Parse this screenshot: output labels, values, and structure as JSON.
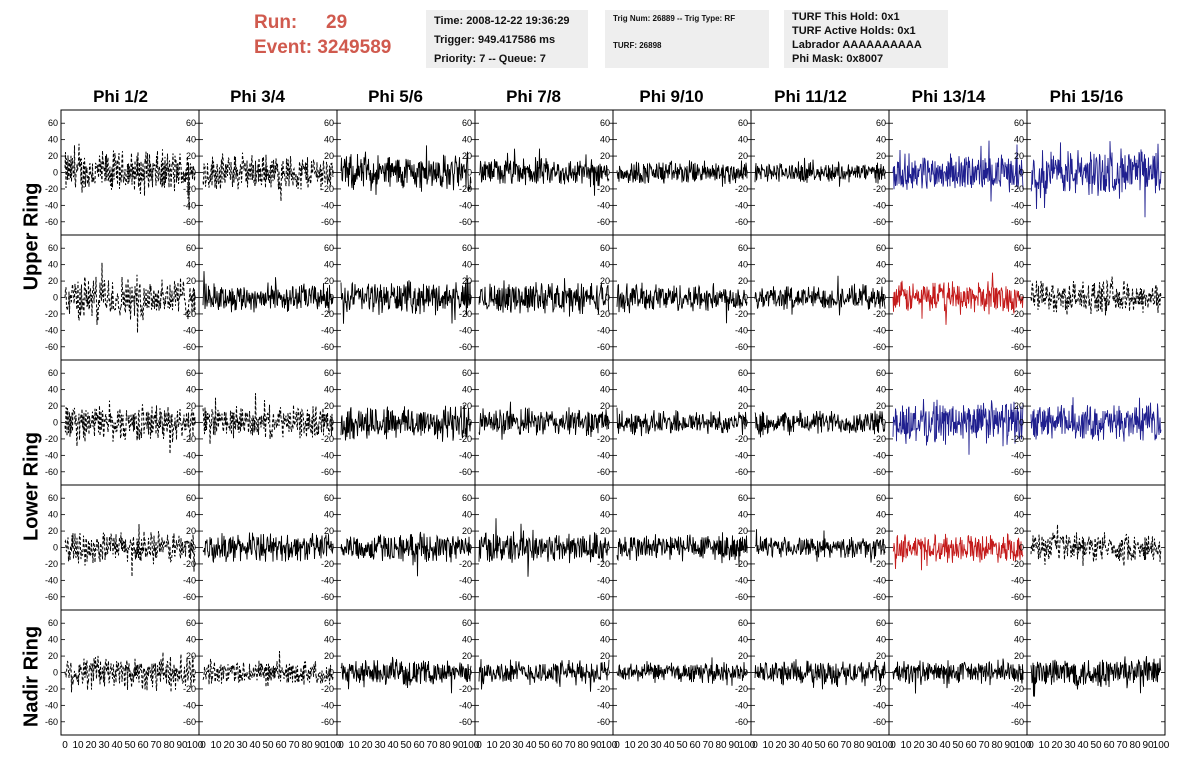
{
  "header": {
    "run_label": "Run:",
    "run_value": "29",
    "event_label": "Event:",
    "event_value": "3249589",
    "time": "Time: 2008-12-22 19:36:29",
    "trigger": "Trigger: 949.417586 ms",
    "priority": "Priority: 7 -- Queue: 7",
    "trig_num": "Trig Num: 26889 -- Trig Type: RF",
    "turf": "TURF: 26898",
    "turf_hold": "TURF This Hold: 0x1",
    "turf_active": "TURF Active Holds: 0x1",
    "labrador": "Labrador AAAAAAAAAA",
    "phi_mask": "Phi Mask: 0x8007"
  },
  "columns": [
    "Phi 1/2",
    "Phi 3/4",
    "Phi 5/6",
    "Phi 7/8",
    "Phi 9/10",
    "Phi 11/12",
    "Phi 13/14",
    "Phi 15/16"
  ],
  "row_groups": [
    "Upper Ring",
    "Lower Ring",
    "Nadir Ring"
  ],
  "axes": {
    "y_ticks": [
      60,
      40,
      20,
      0,
      -20,
      -40,
      -60
    ],
    "y_range": [
      -70,
      70
    ],
    "x_range": [
      0,
      100
    ],
    "x_ticks": [
      0,
      10,
      20,
      30,
      40,
      50,
      60,
      70,
      80,
      90,
      100
    ]
  },
  "colors": {
    "blue": "#1f1f8f",
    "red": "#c41c1c",
    "black": "#000000",
    "header_text": "#d05a4e",
    "info_bg": "#eeeeee"
  },
  "panels": [
    [
      "dashed",
      "dashed",
      "black",
      "black",
      "black",
      "black",
      "blue",
      "blue"
    ],
    [
      "dashed",
      "black",
      "black",
      "black",
      "black",
      "black",
      "red",
      "dashed"
    ],
    [
      "dashed",
      "dashed",
      "black",
      "black",
      "black",
      "black",
      "blue",
      "blue"
    ],
    [
      "dashed",
      "black",
      "black",
      "black",
      "black",
      "black",
      "red",
      "dashed"
    ],
    [
      "dashed",
      "dashed",
      "black",
      "black",
      "black",
      "black",
      "black",
      "black"
    ]
  ],
  "amplitudes": [
    [
      22,
      18,
      18,
      14,
      12,
      10,
      18,
      24
    ],
    [
      22,
      14,
      16,
      16,
      14,
      12,
      16,
      16
    ],
    [
      18,
      16,
      18,
      14,
      12,
      12,
      22,
      18
    ],
    [
      16,
      14,
      14,
      16,
      14,
      10,
      14,
      14
    ],
    [
      18,
      12,
      12,
      12,
      10,
      12,
      12,
      16
    ]
  ]
}
